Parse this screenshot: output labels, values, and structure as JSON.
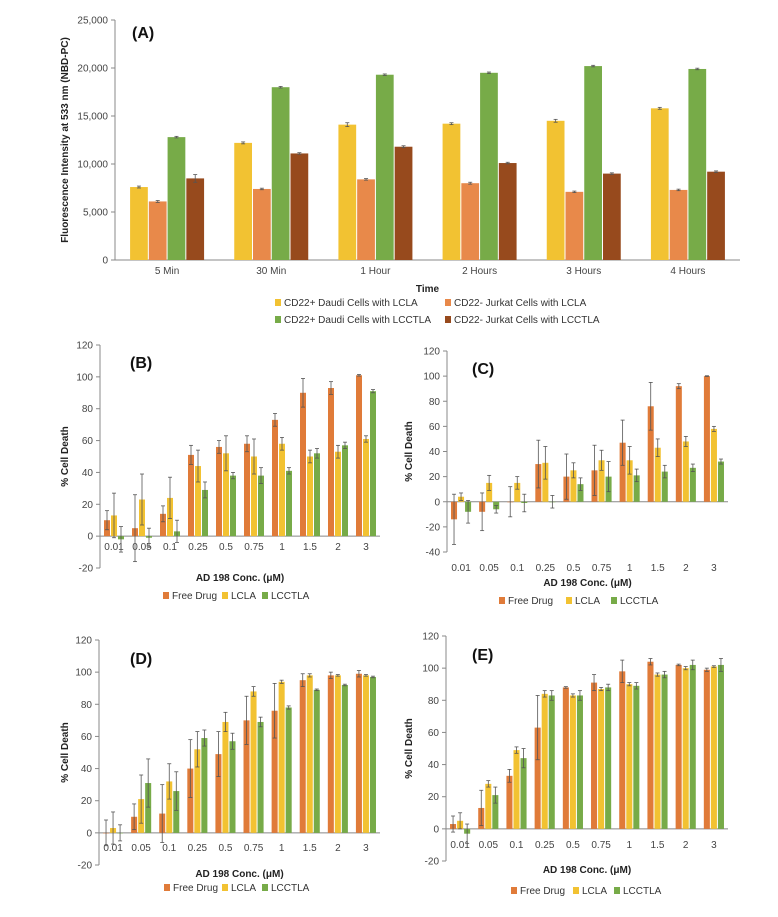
{
  "chart_data": [
    {
      "type": "bar",
      "title": "(A)",
      "xlabel": "Time",
      "ylabel": "Fluorescence Intensity at 533 nm (NBD-PC)",
      "ylim": [
        0,
        25000
      ],
      "yticks": [
        0,
        5000,
        10000,
        15000,
        20000,
        25000
      ],
      "ytick_labels": [
        "0",
        "5,000",
        "10,000",
        "15,000",
        "20,000",
        "25,000"
      ],
      "grid": false,
      "legend_position": "bottom",
      "categories": [
        "5 Min",
        "30 Min",
        "1 Hour",
        "2 Hours",
        "3 Hours",
        "4 Hours"
      ],
      "series": [
        {
          "name": "CD22+ Daudi Cells with LCLA",
          "color": "#F2C232",
          "values": [
            7600,
            12200,
            14100,
            14200,
            14500,
            15800
          ],
          "errors": [
            100,
            100,
            200,
            100,
            150,
            100
          ]
        },
        {
          "name": "CD22- Jurkat Cells with LCLA",
          "color": "#E8894A",
          "values": [
            6100,
            7400,
            8400,
            8000,
            7100,
            7300
          ],
          "errors": [
            100,
            80,
            80,
            100,
            80,
            80
          ]
        },
        {
          "name": "CD22+ Daudi Cells with LCCTLA",
          "color": "#77AB48",
          "values": [
            12800,
            18000,
            19300,
            19500,
            20200,
            19900
          ],
          "errors": [
            80,
            80,
            80,
            80,
            80,
            80
          ]
        },
        {
          "name": "CD22- Jurkat Cells with LCCTLA",
          "color": "#974A1D",
          "values": [
            8500,
            11100,
            11800,
            10100,
            9000,
            9200
          ],
          "errors": [
            400,
            80,
            100,
            80,
            80,
            80
          ]
        }
      ]
    },
    {
      "type": "bar",
      "title": "(B)",
      "xlabel": "AD 198 Conc. (μM)",
      "ylabel": "% Cell Death",
      "ylim": [
        -20,
        120
      ],
      "yticks": [
        -20,
        0,
        20,
        40,
        60,
        80,
        100,
        120
      ],
      "grid": false,
      "legend_position": "bottom",
      "categories": [
        "0.01",
        "0.05",
        "0.1",
        "0.25",
        "0.5",
        "0.75",
        "1",
        "1.5",
        "2",
        "3"
      ],
      "series": [
        {
          "name": "Free Drug",
          "color": "#E07B39",
          "values": [
            10,
            5,
            14,
            51,
            56,
            58,
            73,
            90,
            93,
            101
          ],
          "errors": [
            6,
            21,
            5,
            6,
            4,
            5,
            4,
            9,
            4,
            0.5
          ]
        },
        {
          "name": "LCLA",
          "color": "#F2C232",
          "values": [
            13,
            23,
            24,
            44,
            52,
            50,
            58,
            50,
            53,
            61
          ],
          "errors": [
            14,
            16,
            13,
            10,
            11,
            11,
            4,
            4,
            4,
            2
          ]
        },
        {
          "name": "LCCTLA",
          "color": "#77AB48",
          "values": [
            -2,
            -1,
            3,
            29,
            38,
            38,
            41,
            52,
            57,
            91
          ],
          "errors": [
            8,
            6,
            7,
            5,
            2,
            5,
            2,
            3,
            2,
            1
          ]
        }
      ]
    },
    {
      "type": "bar",
      "title": "(C)",
      "xlabel": "AD 198 Conc. (μM)",
      "ylabel": "% Cell Death",
      "ylim": [
        -40,
        120
      ],
      "yticks": [
        -40,
        -20,
        0,
        20,
        40,
        60,
        80,
        100,
        120
      ],
      "grid": false,
      "legend_position": "bottom",
      "categories": [
        "0.01",
        "0.05",
        "0.1",
        "0.25",
        "0.5",
        "0.75",
        "1",
        "1.5",
        "2",
        "3"
      ],
      "series": [
        {
          "name": "Free Drug",
          "color": "#E07B39",
          "values": [
            -14,
            -8,
            0,
            30,
            20,
            25,
            47,
            76,
            92,
            100
          ],
          "errors": [
            20,
            15,
            12,
            19,
            18,
            20,
            18,
            19,
            2,
            0.3
          ]
        },
        {
          "name": "LCLA",
          "color": "#F2C232",
          "values": [
            4,
            15,
            15,
            31,
            25,
            33,
            33,
            43,
            48,
            58
          ],
          "errors": [
            3,
            6,
            5,
            13,
            6,
            8,
            11,
            7,
            4,
            2
          ]
        },
        {
          "name": "LCCTLA",
          "color": "#77AB48",
          "values": [
            -8,
            -6,
            -1,
            0,
            14,
            20,
            21,
            24,
            27,
            32
          ],
          "errors": [
            9,
            3,
            7,
            5,
            5,
            12,
            5,
            5,
            3,
            2
          ]
        }
      ]
    },
    {
      "type": "bar",
      "title": "(D)",
      "xlabel": "AD 198 Conc. (μM)",
      "ylabel": "% Cell Death",
      "ylim": [
        -20,
        120
      ],
      "yticks": [
        -20,
        0,
        20,
        40,
        60,
        80,
        100,
        120
      ],
      "grid": false,
      "legend_position": "bottom",
      "categories": [
        "0.01",
        "0.05",
        "0.1",
        "0.25",
        "0.5",
        "0.75",
        "1",
        "1.5",
        "2",
        "3"
      ],
      "series": [
        {
          "name": "Free Drug",
          "color": "#E07B39",
          "values": [
            0,
            10,
            12,
            40,
            49,
            70,
            76,
            95,
            98,
            99
          ],
          "errors": [
            8,
            8,
            18,
            18,
            14,
            15,
            17,
            4,
            2,
            2
          ]
        },
        {
          "name": "LCLA",
          "color": "#F2C232",
          "values": [
            3,
            21,
            32,
            52,
            69,
            88,
            94,
            98,
            98,
            98
          ],
          "errors": [
            10,
            15,
            11,
            11,
            6,
            3,
            1,
            1,
            0.5,
            0.5
          ]
        },
        {
          "name": "LCCTLA",
          "color": "#77AB48",
          "values": [
            0,
            31,
            26,
            59,
            57,
            69,
            78,
            89,
            92,
            97
          ],
          "errors": [
            5,
            15,
            12,
            5,
            5,
            3,
            1,
            0.5,
            0.5,
            0.5
          ]
        }
      ]
    },
    {
      "type": "bar",
      "title": "(E)",
      "xlabel": "AD 198 Conc. (μM)",
      "ylabel": "% Cell Death",
      "ylim": [
        -20,
        120
      ],
      "yticks": [
        -20,
        0,
        20,
        40,
        60,
        80,
        100,
        120
      ],
      "grid": false,
      "legend_position": "bottom",
      "categories": [
        "0.01",
        "0.05",
        "0.1",
        "0.25",
        "0.5",
        "0.75",
        "1",
        "1.5",
        "2",
        "3"
      ],
      "series": [
        {
          "name": "Free Drug",
          "color": "#E07B39",
          "values": [
            3,
            13,
            33,
            63,
            88,
            91,
            98,
            104,
            102,
            99
          ],
          "errors": [
            5,
            11,
            4,
            20,
            0.5,
            5,
            7,
            2,
            0.5,
            1
          ]
        },
        {
          "name": "LCLA",
          "color": "#F2C232",
          "values": [
            5,
            28,
            49,
            84,
            83,
            87,
            90,
            96,
            100,
            101
          ],
          "errors": [
            5,
            2,
            2,
            2,
            1,
            1,
            1,
            1,
            1,
            0.5
          ]
        },
        {
          "name": "LCCTLA",
          "color": "#77AB48",
          "values": [
            -3,
            21,
            44,
            83,
            83,
            88,
            89,
            96,
            102,
            102
          ],
          "errors": [
            6,
            5,
            6,
            3,
            3,
            2,
            2,
            2,
            3,
            4
          ]
        }
      ]
    }
  ]
}
